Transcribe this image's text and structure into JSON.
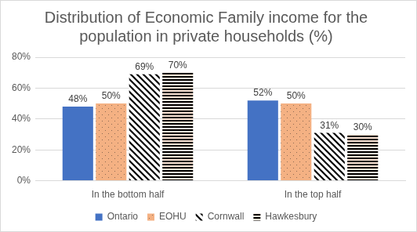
{
  "chart_data": {
    "type": "bar",
    "title": "Distribution of Economic Family income for the population in private households (%)",
    "categories": [
      "In the bottom half",
      "In the top half"
    ],
    "series": [
      {
        "name": "Ontario",
        "color": "#4472c4",
        "values": [
          48,
          52
        ],
        "value_labels": [
          "48%",
          "52%"
        ]
      },
      {
        "name": "EOHU",
        "color": "#f4b183",
        "values": [
          50,
          50
        ],
        "value_labels": [
          "50%",
          "50%"
        ]
      },
      {
        "name": "Cornwall",
        "color": "#000000",
        "values": [
          69,
          31
        ],
        "value_labels": [
          "69%",
          "31%"
        ]
      },
      {
        "name": "Hawkesbury",
        "color": "#000000",
        "values": [
          70,
          30
        ],
        "value_labels": [
          "70%",
          "30%"
        ]
      }
    ],
    "ylim": [
      0,
      80
    ],
    "yticks": [
      {
        "value": 0,
        "label": "0%"
      },
      {
        "value": 20,
        "label": "20%"
      },
      {
        "value": 40,
        "label": "40%"
      },
      {
        "value": 60,
        "label": "60%"
      },
      {
        "value": 80,
        "label": "80%"
      }
    ],
    "grid": true,
    "legend": "bottom",
    "data_labels": true
  }
}
